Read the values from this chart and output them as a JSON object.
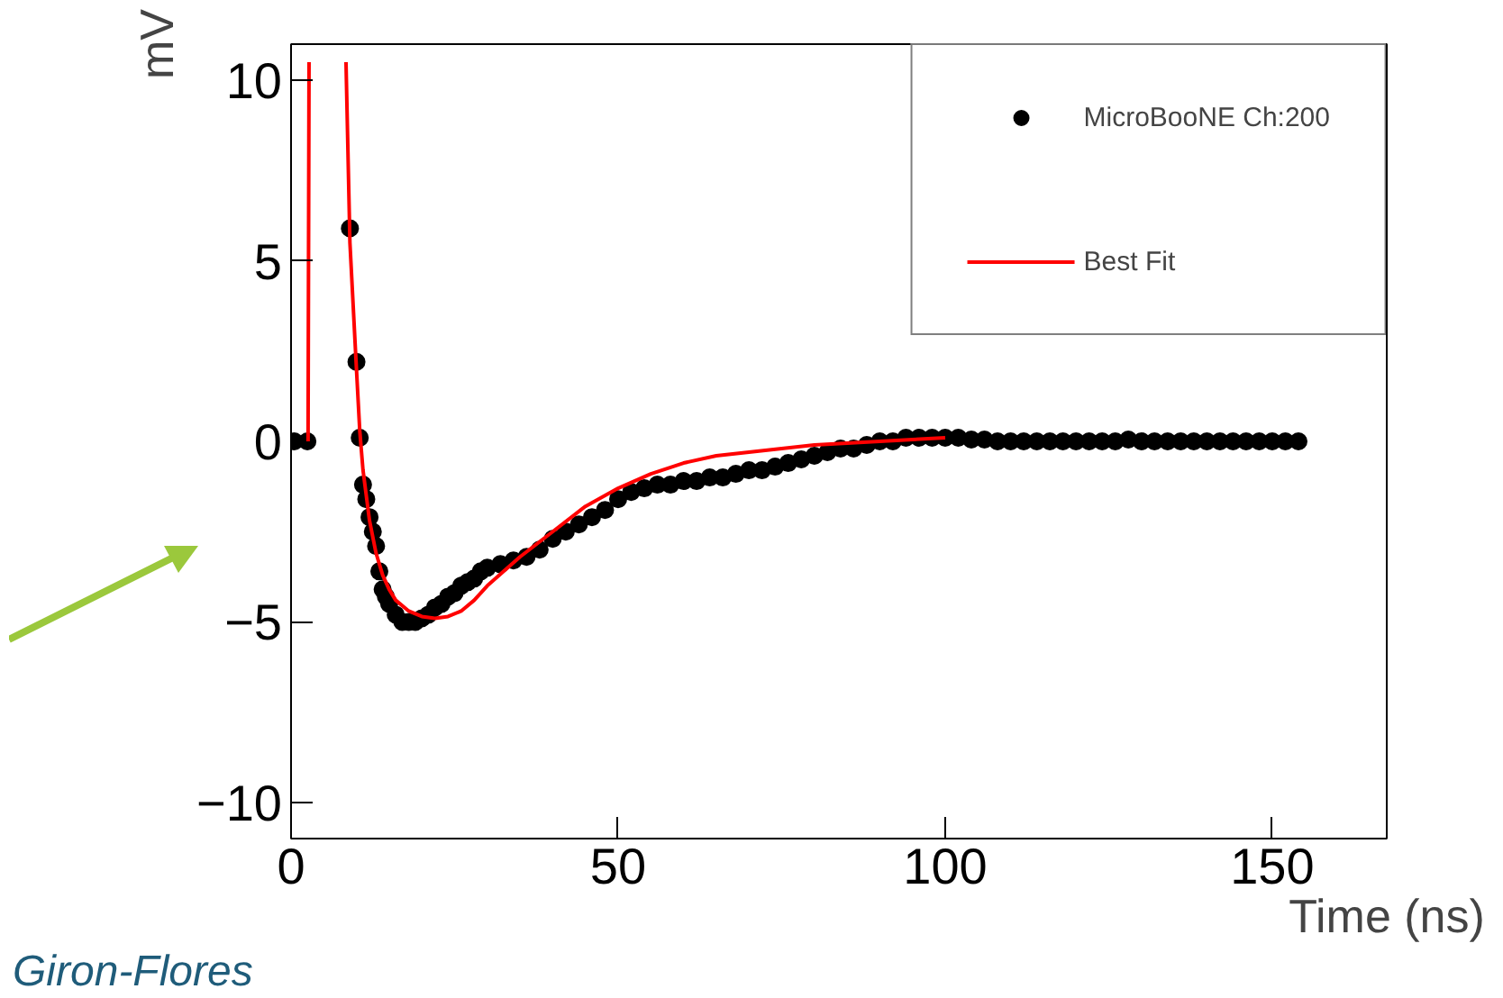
{
  "chart_data": {
    "type": "scatter",
    "xlabel": "Time (ns)",
    "ylabel": "mV",
    "xlim": [
      0,
      167.5
    ],
    "ylim": [
      -11,
      11
    ],
    "xticks": [
      0,
      50,
      100,
      150
    ],
    "yticks": [
      {
        "value": -10,
        "label": "−10"
      },
      {
        "value": -5,
        "label": "−5"
      },
      0,
      5,
      10
    ],
    "grid": false,
    "legend": "top right",
    "annotations": [
      "Giron-Flores"
    ],
    "series": [
      {
        "name": "MicroBooNE Ch:200",
        "marker": "circle",
        "color": "#000000",
        "x": [
          0.5,
          2.5,
          9,
          10,
          10.5,
          11,
          11.5,
          12,
          12.5,
          13,
          13.5,
          14,
          14.5,
          15,
          16,
          17,
          18,
          19,
          20,
          21,
          22,
          23,
          24,
          25,
          26,
          27,
          28,
          29,
          30,
          32,
          34,
          36,
          38,
          40,
          42,
          44,
          46,
          48,
          50,
          52,
          54,
          56,
          58,
          60,
          62,
          64,
          66,
          68,
          70,
          72,
          74,
          76,
          78,
          80,
          82,
          84,
          86,
          88,
          90,
          92,
          94,
          96,
          98,
          100,
          102,
          104,
          106,
          108,
          110,
          112,
          114,
          116,
          118,
          120,
          122,
          124,
          126,
          128,
          130,
          132,
          134,
          136,
          138,
          140,
          142,
          144,
          146,
          148,
          150,
          152,
          154
        ],
        "values": [
          0,
          0,
          5.9,
          2.2,
          0.1,
          -1.2,
          -1.6,
          -2.1,
          -2.5,
          -2.9,
          -3.6,
          -4.1,
          -4.3,
          -4.5,
          -4.8,
          -5.0,
          -5.0,
          -5.0,
          -4.9,
          -4.8,
          -4.6,
          -4.5,
          -4.3,
          -4.2,
          -4.0,
          -3.9,
          -3.8,
          -3.6,
          -3.5,
          -3.4,
          -3.3,
          -3.2,
          -3.0,
          -2.7,
          -2.5,
          -2.3,
          -2.1,
          -1.9,
          -1.6,
          -1.4,
          -1.3,
          -1.2,
          -1.2,
          -1.1,
          -1.1,
          -1.0,
          -1.0,
          -0.9,
          -0.8,
          -0.8,
          -0.7,
          -0.6,
          -0.5,
          -0.4,
          -0.3,
          -0.2,
          -0.2,
          -0.1,
          0,
          0,
          0.1,
          0.1,
          0.1,
          0.1,
          0.1,
          0.05,
          0.05,
          0,
          0,
          0,
          0,
          0,
          0,
          0,
          0,
          0,
          0,
          0.05,
          0,
          0,
          0,
          0,
          0,
          0,
          0,
          0,
          0,
          0,
          0,
          0,
          0
        ]
      },
      {
        "name": "Best Fit",
        "type": "line",
        "color": "#ff0000",
        "x": [
          2.6,
          2.75,
          5.5,
          8.4,
          9,
          10,
          10.5,
          11,
          12,
          13,
          14,
          15,
          16,
          18,
          20,
          22,
          24,
          26,
          28,
          30,
          35,
          40,
          45,
          50,
          55,
          60,
          65,
          70,
          75,
          80,
          85,
          90,
          95,
          100
        ],
        "values": [
          0,
          10.5,
          null,
          10.5,
          5.5,
          2.0,
          0.3,
          -0.8,
          -2.2,
          -3.1,
          -3.7,
          -4.1,
          -4.4,
          -4.7,
          -4.85,
          -4.9,
          -4.85,
          -4.7,
          -4.4,
          -4.0,
          -3.2,
          -2.5,
          -1.8,
          -1.3,
          -0.9,
          -0.6,
          -0.4,
          -0.3,
          -0.2,
          -0.1,
          -0.05,
          0,
          0.05,
          0.1
        ]
      }
    ]
  }
}
